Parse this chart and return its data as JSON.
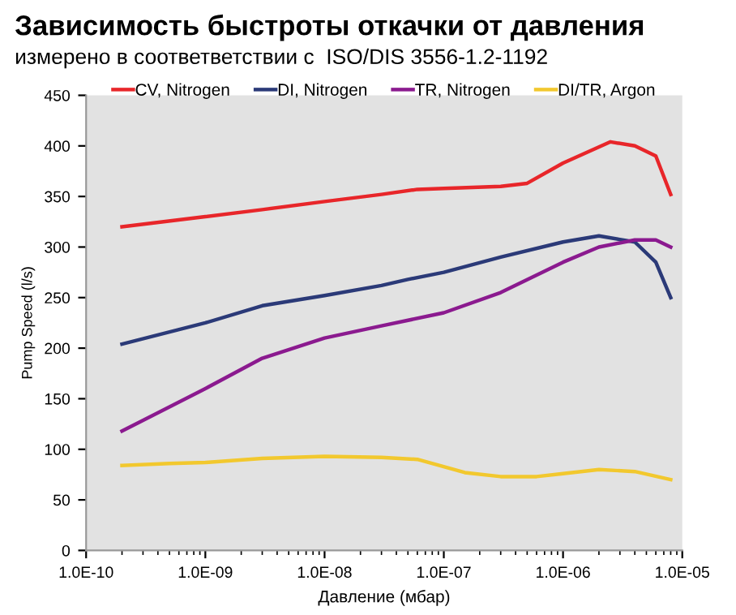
{
  "chart_data": {
    "type": "line",
    "title": "Зависимость быстроты откачки от давления",
    "subtitle": "измерено в соответветствии с  ISO/DIS 3556-1.2-1192",
    "xlabel": "Давление (мбар)",
    "ylabel": "Pump Speed (l/s)",
    "log": "x",
    "grid": false,
    "legend": "top",
    "marker": "none",
    "line_style": "solid",
    "xlim": [
      1e-10,
      1e-05
    ],
    "xticks": [
      {
        "value": 1e-10,
        "label": "1.0E-10"
      },
      {
        "value": 1e-09,
        "label": "1.0E-09"
      },
      {
        "value": 1e-08,
        "label": "1.0E-08"
      },
      {
        "value": 1e-07,
        "label": "1.0E-07"
      },
      {
        "value": 1e-06,
        "label": "1.0E-06"
      },
      {
        "value": 1e-05,
        "label": "1.0E-05"
      }
    ],
    "ylim": [
      0,
      450
    ],
    "yticks": [
      0,
      50,
      100,
      150,
      200,
      250,
      300,
      350,
      400,
      450
    ],
    "series": [
      {
        "name": "CV, Nitrogen",
        "color": "#e8262a",
        "x": [
          2e-10,
          1e-09,
          3e-09,
          1e-08,
          3e-08,
          6e-08,
          1e-07,
          3e-07,
          5e-07,
          1e-06,
          2.5e-06,
          4e-06,
          6e-06,
          8e-06
        ],
        "values": [
          320,
          330,
          337,
          345,
          352,
          357,
          358,
          360,
          363,
          383,
          404,
          400,
          390,
          352
        ]
      },
      {
        "name": "DI, Nitrogen",
        "color": "#2b3a78",
        "x": [
          2e-10,
          1e-09,
          3e-09,
          1e-08,
          3e-08,
          5e-08,
          1e-07,
          3e-07,
          1e-06,
          2e-06,
          4e-06,
          6e-06,
          8e-06
        ],
        "values": [
          204,
          225,
          242,
          252,
          262,
          268,
          275,
          290,
          305,
          311,
          305,
          285,
          250
        ]
      },
      {
        "name": "TR, Nitrogen",
        "color": "#8b1a8f",
        "x": [
          2e-10,
          1e-09,
          3e-09,
          1e-08,
          3e-08,
          1e-07,
          3e-07,
          1e-06,
          2e-06,
          4e-06,
          6e-06,
          8e-06
        ],
        "values": [
          118,
          160,
          190,
          210,
          222,
          235,
          255,
          285,
          300,
          307,
          307,
          300
        ]
      },
      {
        "name": "DI/TR, Argon",
        "color": "#f2c82e",
        "x": [
          2e-10,
          5e-10,
          1e-09,
          3e-09,
          1e-08,
          3e-08,
          6e-08,
          1.5e-07,
          3e-07,
          6e-07,
          1e-06,
          2e-06,
          4e-06,
          8e-06
        ],
        "values": [
          84,
          86,
          87,
          91,
          93,
          92,
          90,
          77,
          73,
          73,
          76,
          80,
          78,
          70
        ]
      }
    ]
  }
}
